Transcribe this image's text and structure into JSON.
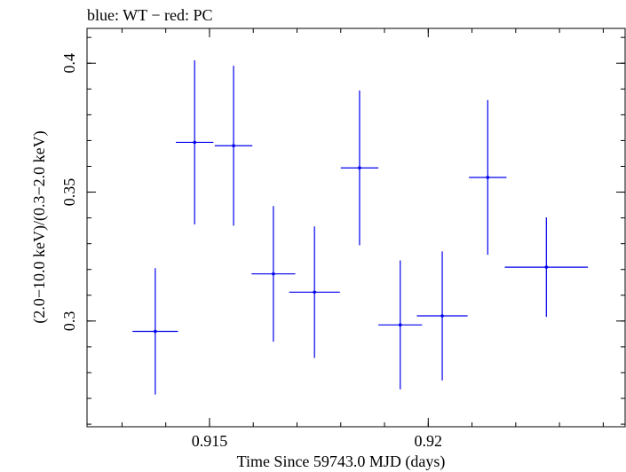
{
  "chart_data": {
    "type": "scatter",
    "title": "blue: WT − red: PC",
    "xlabel": "Time Since 59743.0 MJD (days)",
    "ylabel": "(2.0−10.0 keV)/(0.3−2.0 keV)",
    "xlim": [
      0.9122,
      0.9245
    ],
    "ylim": [
      0.259,
      0.4135
    ],
    "x_ticks": [
      {
        "value": 0.915,
        "label": "0.915"
      },
      {
        "value": 0.92,
        "label": "0.92"
      }
    ],
    "y_ticks": [
      {
        "value": 0.3,
        "label": "0.3"
      },
      {
        "value": 0.35,
        "label": "0.35"
      },
      {
        "value": 0.4,
        "label": "0.4"
      }
    ],
    "x_minor_step": 0.001,
    "y_minor_step": 0.01,
    "grid": false,
    "series": [
      {
        "name": "WT",
        "color": "#0000ee",
        "points": [
          {
            "x": 0.91376,
            "y": 0.296,
            "xerr": 0.00052,
            "yerr_low": 0.0245,
            "yerr_high": 0.0245
          },
          {
            "x": 0.91466,
            "y": 0.3693,
            "xerr": 0.00043,
            "yerr_low": 0.0318,
            "yerr_high": 0.0318
          },
          {
            "x": 0.91555,
            "y": 0.368,
            "xerr": 0.00043,
            "yerr_low": 0.031,
            "yerr_high": 0.031
          },
          {
            "x": 0.91646,
            "y": 0.3183,
            "xerr": 0.0005,
            "yerr_low": 0.0263,
            "yerr_high": 0.0263
          },
          {
            "x": 0.9174,
            "y": 0.3112,
            "xerr": 0.00058,
            "yerr_low": 0.0255,
            "yerr_high": 0.0255
          },
          {
            "x": 0.91843,
            "y": 0.3594,
            "xerr": 0.00043,
            "yerr_low": 0.03,
            "yerr_high": 0.03
          },
          {
            "x": 0.91936,
            "y": 0.2985,
            "xerr": 0.0005,
            "yerr_low": 0.025,
            "yerr_high": 0.025
          },
          {
            "x": 0.92032,
            "y": 0.302,
            "xerr": 0.00058,
            "yerr_low": 0.025,
            "yerr_high": 0.025
          },
          {
            "x": 0.92136,
            "y": 0.3557,
            "xerr": 0.00043,
            "yerr_low": 0.03,
            "yerr_high": 0.03
          },
          {
            "x": 0.9227,
            "y": 0.3209,
            "xerr": 0.00095,
            "yerr_low": 0.0193,
            "yerr_high": 0.0193
          }
        ]
      }
    ]
  }
}
